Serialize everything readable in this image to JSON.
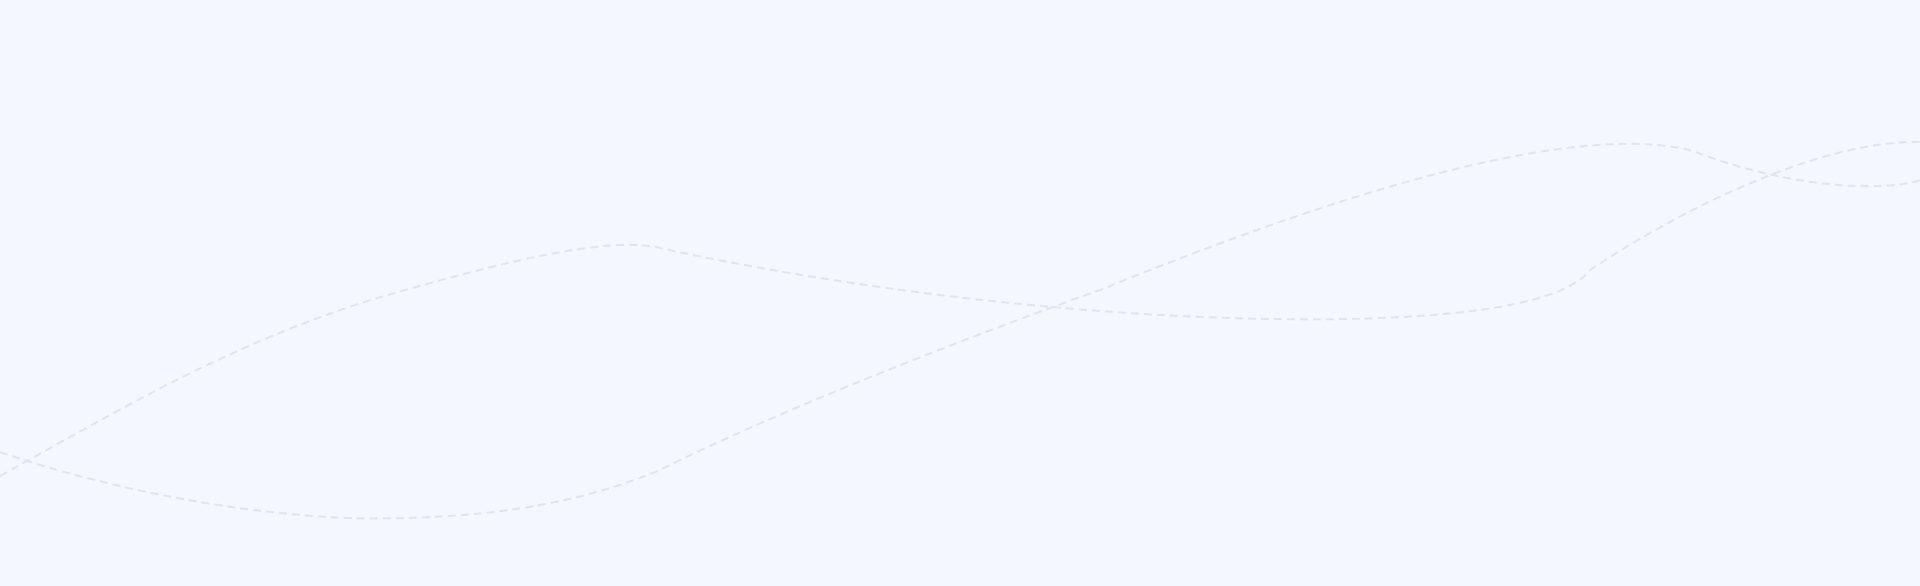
{
  "background": {
    "color": "#f4f7fe",
    "stroke_color": "#dfe4ef",
    "pattern": "dashed-wave-lines"
  }
}
